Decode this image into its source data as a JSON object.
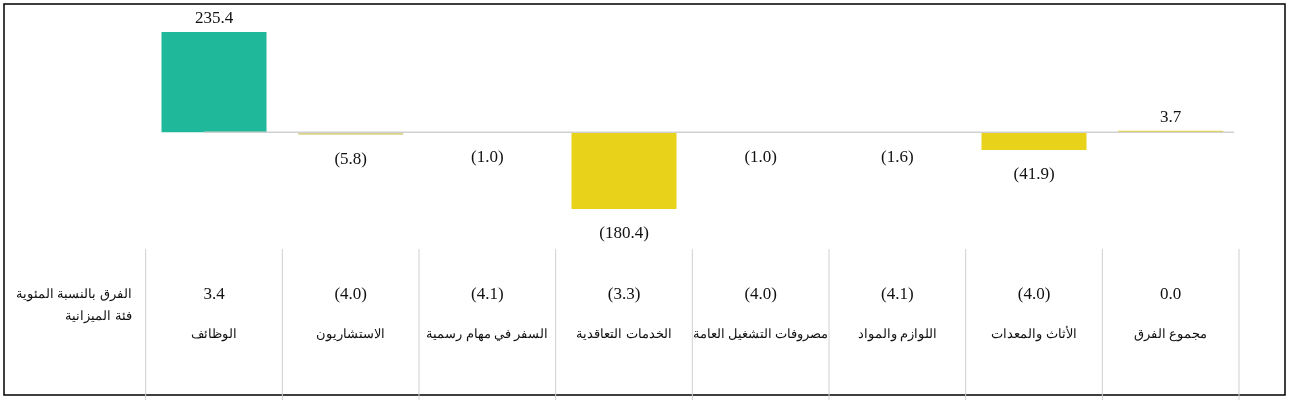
{
  "chart_data": {
    "type": "bar",
    "categories": [
      "الوظائف",
      "الاستشاريون",
      "السفر في مهام رسمية",
      "الخدمات التعاقدية",
      "مصروفات التشغيل العامة",
      "اللوازم والمواد",
      "الأثاث والمعدات",
      "مجموع الفرق"
    ],
    "values": [
      235.4,
      -5.8,
      -1.0,
      -180.4,
      -1.0,
      -1.6,
      -41.9,
      3.7
    ],
    "value_labels": [
      "235.4",
      "(5.8)",
      "(1.0)",
      "(180.4)",
      "(1.0)",
      "(1.6)",
      "(41.9)",
      "3.7"
    ],
    "colors": [
      "#1fb89a",
      "#d9d38a",
      "#e8d31a",
      "#e8d31a",
      "#e8d31a",
      "#e8d31a",
      "#e8d31a",
      "#e8d31a"
    ],
    "annotations": [
      "3.4",
      "(4.0)",
      "(4.1)",
      "(3.3)",
      "(4.0)",
      "(4.1)",
      "(4.0)",
      "0.0",
      "الفرق بالنسبة المئوية",
      "فئة الميزانية"
    ]
  }
}
